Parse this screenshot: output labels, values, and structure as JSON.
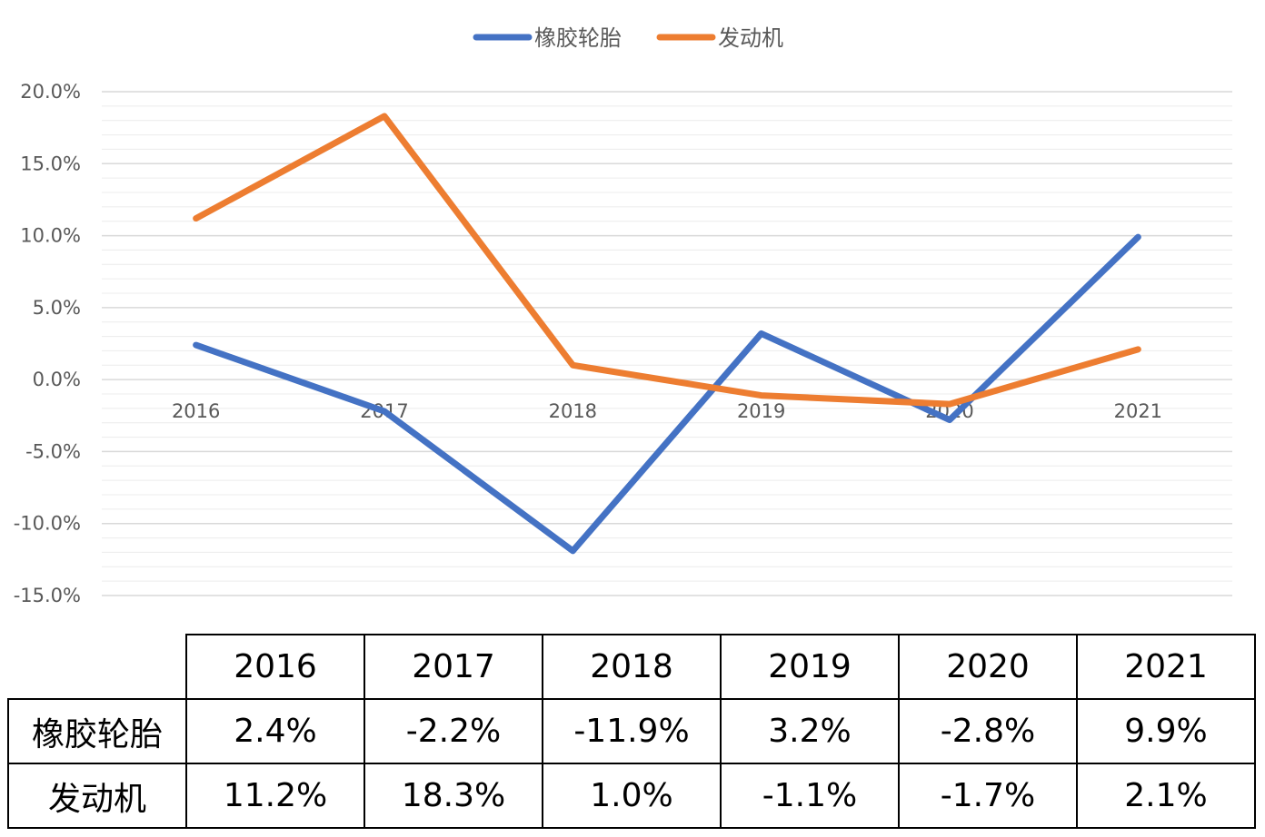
{
  "chart_data": {
    "type": "line",
    "categories": [
      "2016",
      "2017",
      "2018",
      "2019",
      "2020",
      "2021"
    ],
    "series": [
      {
        "name": "橡胶轮胎",
        "values": [
          2.4,
          -2.2,
          -11.9,
          3.2,
          -2.8,
          9.9
        ],
        "color": "#4472C4"
      },
      {
        "name": "发动机",
        "values": [
          11.2,
          18.3,
          1.0,
          -1.1,
          -1.7,
          2.1
        ],
        "color": "#ED7D31"
      }
    ],
    "ylim": [
      -15,
      20
    ],
    "yticks": [
      20,
      15,
      10,
      5,
      0,
      -5,
      -10,
      -15
    ],
    "ytick_labels": [
      "20.0%",
      "15.0%",
      "10.0%",
      "5.0%",
      "0.0%",
      "-5.0%",
      "-10.0%",
      "-15.0%"
    ],
    "grid": true,
    "legend": "top-center"
  },
  "table": {
    "headers": [
      "2016",
      "2017",
      "2018",
      "2019",
      "2020",
      "2021"
    ],
    "rows": [
      {
        "label": "橡胶轮胎",
        "cells": [
          "2.4%",
          "-2.2%",
          "-11.9%",
          "3.2%",
          "-2.8%",
          "9.9%"
        ]
      },
      {
        "label": "发动机",
        "cells": [
          "11.2%",
          "18.3%",
          "1.0%",
          "-1.1%",
          "-1.7%",
          "2.1%"
        ]
      }
    ]
  }
}
